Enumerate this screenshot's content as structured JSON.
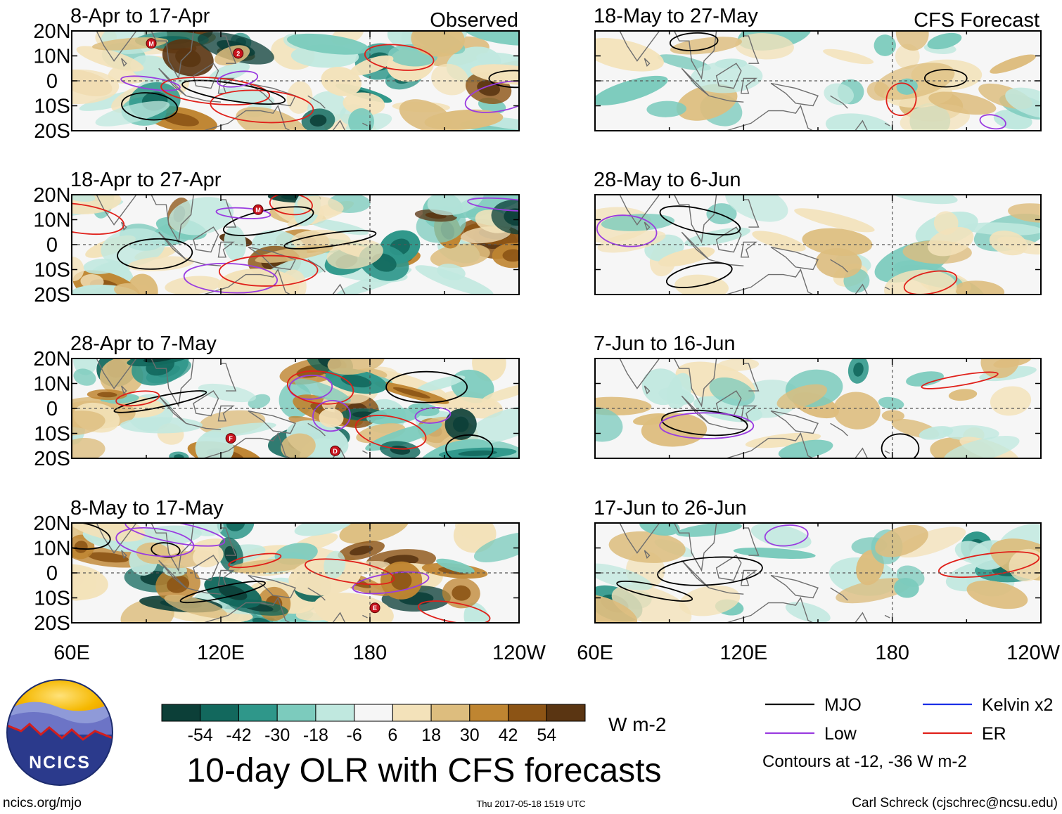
{
  "chart_data": {
    "type": "heatmap",
    "title": "10-day OLR with CFS forecasts",
    "units": "W m-2",
    "x_ticks": [
      "60E",
      "120E",
      "180",
      "120W"
    ],
    "y_ticks": [
      "20N",
      "10N",
      "0",
      "10S",
      "20S"
    ],
    "xlim_deg_east": [
      60,
      240
    ],
    "ylim_deg": [
      -20,
      20
    ],
    "column_labels": {
      "left": "Observed",
      "right": "CFS Forecast"
    },
    "panels": [
      {
        "period": "8-Apr to 17-Apr",
        "column": "observed",
        "cyclones": [
          {
            "label": "M",
            "lon": 92,
            "lat": 15
          },
          {
            "label": "2",
            "lon": 127,
            "lat": 11
          }
        ]
      },
      {
        "period": "18-Apr to 27-Apr",
        "column": "observed",
        "cyclones": [
          {
            "label": "M",
            "lon": 135,
            "lat": 14
          }
        ]
      },
      {
        "period": "28-Apr to 7-May",
        "column": "observed",
        "cyclones": [
          {
            "label": "F",
            "lon": 124,
            "lat": -12
          },
          {
            "label": "D",
            "lon": 166,
            "lat": -17
          }
        ]
      },
      {
        "period": "8-May to 17-May",
        "column": "observed",
        "cyclones": [
          {
            "label": "E",
            "lon": 182,
            "lat": -14
          }
        ]
      },
      {
        "period": "18-May to 27-May",
        "column": "forecast",
        "cyclones": []
      },
      {
        "period": "28-May to 6-Jun",
        "column": "forecast",
        "cyclones": []
      },
      {
        "period": "7-Jun to 16-Jun",
        "column": "forecast",
        "cyclones": []
      },
      {
        "period": "17-Jun to 26-Jun",
        "column": "forecast",
        "cyclones": []
      }
    ],
    "colorbar": {
      "labels": [
        "-54",
        "-42",
        "-30",
        "-18",
        "-6",
        "6",
        "18",
        "30",
        "42",
        "54"
      ],
      "colors": [
        "#0c3f38",
        "#12685d",
        "#2f978a",
        "#7ccbbd",
        "#c0e8df",
        "#f6f6f6",
        "#f3e2ba",
        "#ddbd7e",
        "#bf8531",
        "#8c5415",
        "#5a3512"
      ]
    },
    "legend": [
      {
        "name": "MJO",
        "color": "#000000"
      },
      {
        "name": "Kelvin x2",
        "color": "#1a2fe6"
      },
      {
        "name": "Low",
        "color": "#9a3ce0"
      },
      {
        "name": "ER",
        "color": "#e0201a"
      }
    ],
    "contour_note": "Contours at -12, -36 W m-2"
  },
  "footer": {
    "logo_text": "NCICS",
    "url": "ncics.org/mjo",
    "timestamp": "Thu 2017-05-18 1519 UTC",
    "credit": "Carl Schreck (cjschrec@ncsu.edu)"
  }
}
